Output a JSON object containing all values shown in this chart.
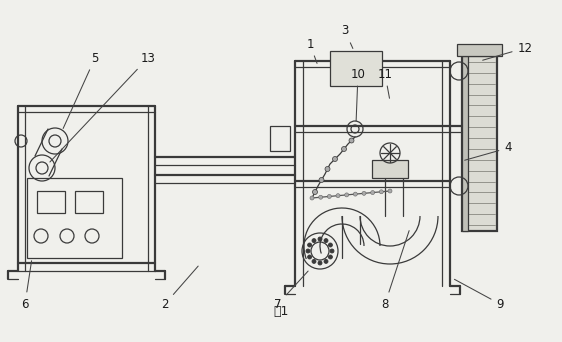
{
  "bg_color": "#f0f0ec",
  "line_color": "#3a3a3a",
  "line_width": 0.9,
  "thick_line": 1.6,
  "fig_width": 5.62,
  "fig_height": 3.42,
  "dpi": 100,
  "title": "图1"
}
